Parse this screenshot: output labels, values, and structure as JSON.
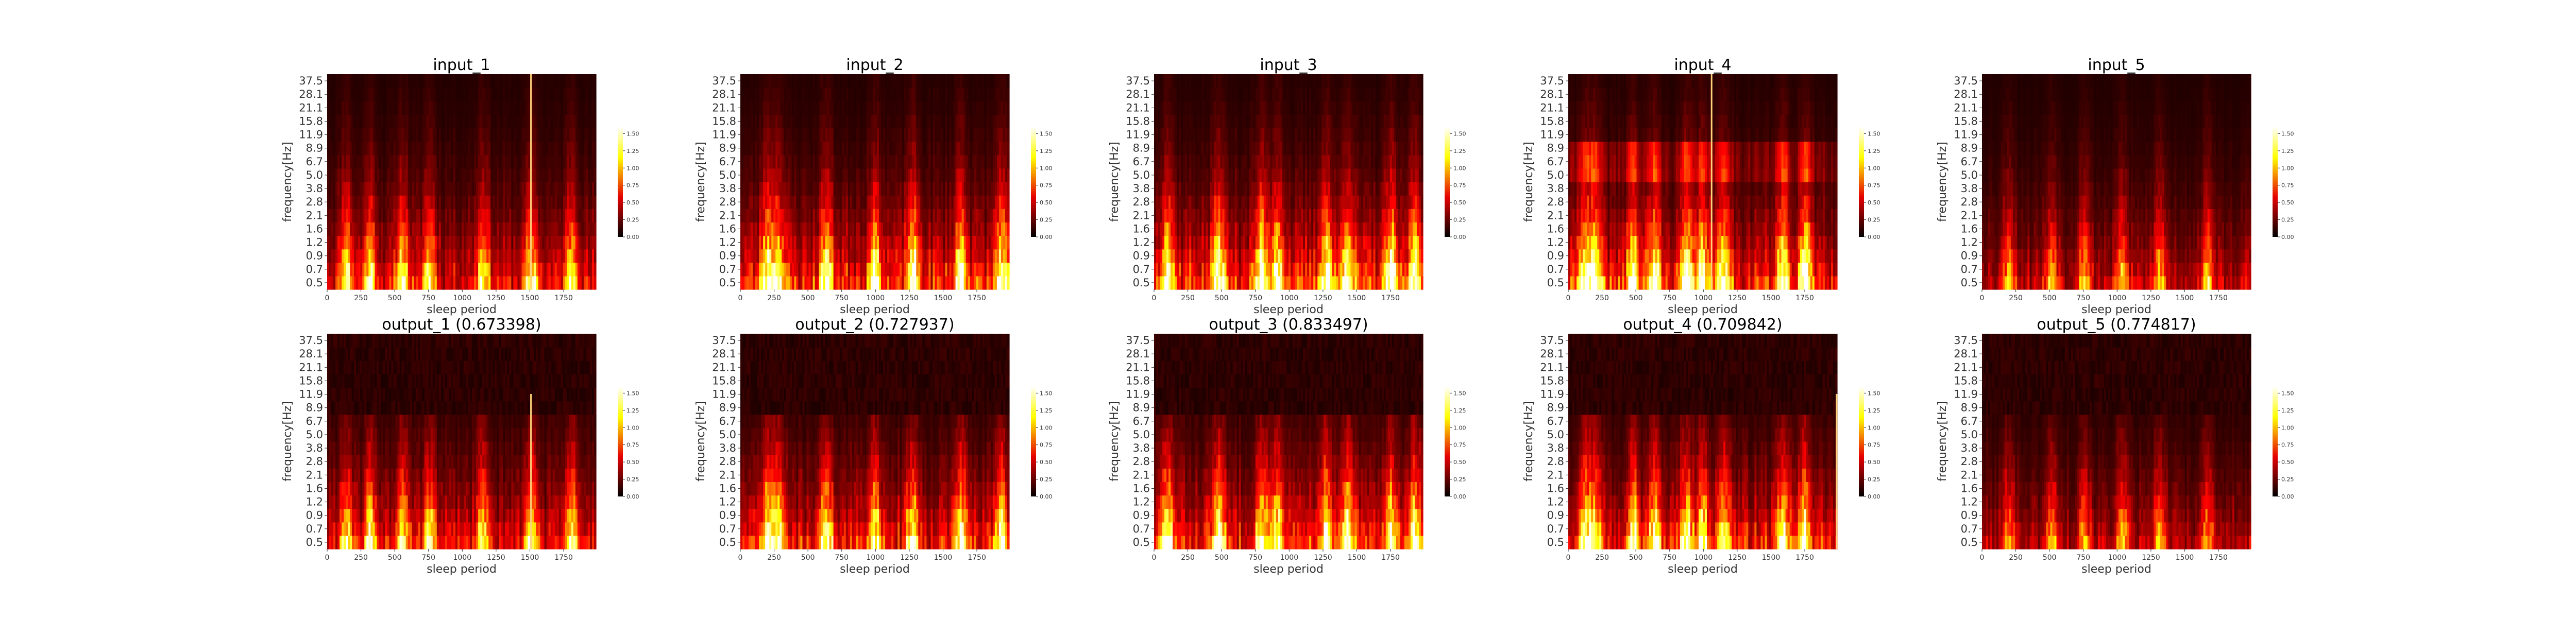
{
  "figure": {
    "colormap": "hot",
    "background": "#ffffff"
  },
  "chart_data": [
    {
      "type": "heatmap",
      "title": "input_1",
      "xlabel": "sleep period",
      "ylabel": "frequency[Hz]",
      "xticks": [
        0,
        250,
        500,
        750,
        1000,
        1250,
        1500,
        1750
      ],
      "xlim": [
        0,
        1990
      ],
      "yticks": [
        "0.5",
        "0.7",
        "0.9",
        "1.2",
        "1.6",
        "2.1",
        "2.8",
        "3.8",
        "5.0",
        "6.7",
        "8.9",
        "11.9",
        "15.8",
        "21.1",
        "28.1",
        "37.5"
      ],
      "colorbar": {
        "ticks": [
          "0.00",
          "0.25",
          "0.50",
          "0.75",
          "1.00",
          "1.25",
          "1.50"
        ],
        "min": 0,
        "max": 1.6
      },
      "seed": 11,
      "bright_x": [
        0.07,
        0.16,
        0.28,
        0.38,
        0.58,
        0.76,
        0.91
      ],
      "streak_x": 0.755,
      "intensity": 0.78,
      "cutoff": 1.0,
      "hi_band": 0.0
    },
    {
      "type": "heatmap",
      "title": "input_2",
      "xlabel": "sleep period",
      "ylabel": "frequency[Hz]",
      "xticks": [
        0,
        250,
        500,
        750,
        1000,
        1250,
        1500,
        1750
      ],
      "xlim": [
        0,
        1990
      ],
      "yticks": [
        "0.5",
        "0.7",
        "0.9",
        "1.2",
        "1.6",
        "2.1",
        "2.8",
        "3.8",
        "5.0",
        "6.7",
        "8.9",
        "11.9",
        "15.8",
        "21.1",
        "28.1",
        "37.5"
      ],
      "colorbar": {
        "ticks": [
          "0.00",
          "0.25",
          "0.50",
          "0.75",
          "1.00",
          "1.25",
          "1.50"
        ],
        "min": 0,
        "max": 1.6
      },
      "seed": 23,
      "bright_x": [
        0.1,
        0.14,
        0.32,
        0.5,
        0.64,
        0.82,
        0.97
      ],
      "streak_x": -1,
      "intensity": 0.95,
      "cutoff": 1.0,
      "hi_band": 0.0
    },
    {
      "type": "heatmap",
      "title": "input_3",
      "xlabel": "sleep period",
      "ylabel": "frequency[Hz]",
      "xticks": [
        0,
        250,
        500,
        750,
        1000,
        1250,
        1500,
        1750
      ],
      "xlim": [
        0,
        1990
      ],
      "yticks": [
        "0.5",
        "0.7",
        "0.9",
        "1.2",
        "1.6",
        "2.1",
        "2.8",
        "3.8",
        "5.0",
        "6.7",
        "8.9",
        "11.9",
        "15.8",
        "21.1",
        "28.1",
        "37.5"
      ],
      "colorbar": {
        "ticks": [
          "0.00",
          "0.25",
          "0.50",
          "0.75",
          "1.00",
          "1.25",
          "1.50"
        ],
        "min": 0,
        "max": 1.6
      },
      "seed": 37,
      "bright_x": [
        0.05,
        0.24,
        0.4,
        0.46,
        0.64,
        0.72,
        0.88,
        0.97
      ],
      "streak_x": -1,
      "intensity": 1.0,
      "cutoff": 1.0,
      "hi_band": 0.0
    },
    {
      "type": "heatmap",
      "title": "input_4",
      "xlabel": "sleep period",
      "ylabel": "frequency[Hz]",
      "xticks": [
        0,
        250,
        500,
        750,
        1000,
        1250,
        1500,
        1750
      ],
      "xlim": [
        0,
        1990
      ],
      "yticks": [
        "0.5",
        "0.7",
        "0.9",
        "1.2",
        "1.6",
        "2.1",
        "2.8",
        "3.8",
        "5.0",
        "6.7",
        "8.9",
        "11.9",
        "15.8",
        "21.1",
        "28.1",
        "37.5"
      ],
      "colorbar": {
        "ticks": [
          "0.00",
          "0.25",
          "0.50",
          "0.75",
          "1.00",
          "1.25",
          "1.50"
        ],
        "min": 0,
        "max": 1.6
      },
      "seed": 41,
      "bright_x": [
        0.06,
        0.1,
        0.24,
        0.32,
        0.44,
        0.5,
        0.58,
        0.8,
        0.88
      ],
      "streak_x": 0.53,
      "intensity": 0.95,
      "cutoff": 1.0,
      "hi_band": 0.35
    },
    {
      "type": "heatmap",
      "title": "input_5",
      "xlabel": "sleep period",
      "ylabel": "frequency[Hz]",
      "xticks": [
        0,
        250,
        500,
        750,
        1000,
        1250,
        1500,
        1750
      ],
      "xlim": [
        0,
        1990
      ],
      "yticks": [
        "0.5",
        "0.7",
        "0.9",
        "1.2",
        "1.6",
        "2.1",
        "2.8",
        "3.8",
        "5.0",
        "6.7",
        "8.9",
        "11.9",
        "15.8",
        "21.1",
        "28.1",
        "37.5"
      ],
      "colorbar": {
        "ticks": [
          "0.00",
          "0.25",
          "0.50",
          "0.75",
          "1.00",
          "1.25",
          "1.50"
        ],
        "min": 0,
        "max": 1.6
      },
      "seed": 53,
      "bright_x": [
        0.1,
        0.26,
        0.38,
        0.52,
        0.66,
        0.84
      ],
      "streak_x": -1,
      "intensity": 0.6,
      "cutoff": 1.0,
      "hi_band": 0.0
    },
    {
      "type": "heatmap",
      "title": "output_1 (0.673398)",
      "xlabel": "sleep period",
      "ylabel": "frequency[Hz]",
      "xticks": [
        0,
        250,
        500,
        750,
        1000,
        1250,
        1500,
        1750
      ],
      "xlim": [
        0,
        1990
      ],
      "yticks": [
        "0.5",
        "0.7",
        "0.9",
        "1.2",
        "1.6",
        "2.1",
        "2.8",
        "3.8",
        "5.0",
        "6.7",
        "8.9",
        "11.9",
        "15.8",
        "21.1",
        "28.1",
        "37.5"
      ],
      "colorbar": {
        "ticks": [
          "0.00",
          "0.25",
          "0.50",
          "0.75",
          "1.00",
          "1.25",
          "1.50"
        ],
        "min": 0,
        "max": 1.6
      },
      "seed": 61,
      "bright_x": [
        0.07,
        0.16,
        0.28,
        0.38,
        0.58,
        0.76,
        0.91
      ],
      "streak_x": 0.755,
      "intensity": 0.75,
      "cutoff": 0.66,
      "hi_band": 0.0
    },
    {
      "type": "heatmap",
      "title": "output_2 (0.727937)",
      "xlabel": "sleep period",
      "ylabel": "frequency[Hz]",
      "xticks": [
        0,
        250,
        500,
        750,
        1000,
        1250,
        1500,
        1750
      ],
      "xlim": [
        0,
        1990
      ],
      "yticks": [
        "0.5",
        "0.7",
        "0.9",
        "1.2",
        "1.6",
        "2.1",
        "2.8",
        "3.8",
        "5.0",
        "6.7",
        "8.9",
        "11.9",
        "15.8",
        "21.1",
        "28.1",
        "37.5"
      ],
      "colorbar": {
        "ticks": [
          "0.00",
          "0.25",
          "0.50",
          "0.75",
          "1.00",
          "1.25",
          "1.50"
        ],
        "min": 0,
        "max": 1.6
      },
      "seed": 71,
      "bright_x": [
        0.1,
        0.14,
        0.32,
        0.5,
        0.64,
        0.82,
        0.97
      ],
      "streak_x": -1,
      "intensity": 0.85,
      "cutoff": 0.66,
      "hi_band": 0.0
    },
    {
      "type": "heatmap",
      "title": "output_3 (0.833497)",
      "xlabel": "sleep period",
      "ylabel": "frequency[Hz]",
      "xticks": [
        0,
        250,
        500,
        750,
        1000,
        1250,
        1500,
        1750
      ],
      "xlim": [
        0,
        1990
      ],
      "yticks": [
        "0.5",
        "0.7",
        "0.9",
        "1.2",
        "1.6",
        "2.1",
        "2.8",
        "3.8",
        "5.0",
        "6.7",
        "8.9",
        "11.9",
        "15.8",
        "21.1",
        "28.1",
        "37.5"
      ],
      "colorbar": {
        "ticks": [
          "0.00",
          "0.25",
          "0.50",
          "0.75",
          "1.00",
          "1.25",
          "1.50"
        ],
        "min": 0,
        "max": 1.6
      },
      "seed": 83,
      "bright_x": [
        0.05,
        0.24,
        0.4,
        0.46,
        0.64,
        0.72,
        0.88,
        0.97
      ],
      "streak_x": -1,
      "intensity": 0.9,
      "cutoff": 0.66,
      "hi_band": 0.0
    },
    {
      "type": "heatmap",
      "title": "output_4 (0.709842)",
      "xlabel": "sleep period",
      "ylabel": "frequency[Hz]",
      "xticks": [
        0,
        250,
        500,
        750,
        1000,
        1250,
        1500,
        1750
      ],
      "xlim": [
        0,
        1990
      ],
      "yticks": [
        "0.5",
        "0.7",
        "0.9",
        "1.2",
        "1.6",
        "2.1",
        "2.8",
        "3.8",
        "5.0",
        "6.7",
        "8.9",
        "11.9",
        "15.8",
        "21.1",
        "28.1",
        "37.5"
      ],
      "colorbar": {
        "ticks": [
          "0.00",
          "0.25",
          "0.50",
          "0.75",
          "1.00",
          "1.25",
          "1.50"
        ],
        "min": 0,
        "max": 1.6
      },
      "seed": 97,
      "bright_x": [
        0.06,
        0.1,
        0.24,
        0.32,
        0.44,
        0.5,
        0.58,
        0.8,
        0.88
      ],
      "streak_x": 0.995,
      "intensity": 0.85,
      "cutoff": 0.66,
      "hi_band": 0.0
    },
    {
      "type": "heatmap",
      "title": "output_5 (0.774817)",
      "xlabel": "sleep period",
      "ylabel": "frequency[Hz]",
      "xticks": [
        0,
        250,
        500,
        750,
        1000,
        1250,
        1500,
        1750
      ],
      "xlim": [
        0,
        1990
      ],
      "yticks": [
        "0.5",
        "0.7",
        "0.9",
        "1.2",
        "1.6",
        "2.1",
        "2.8",
        "3.8",
        "5.0",
        "6.7",
        "8.9",
        "11.9",
        "15.8",
        "21.1",
        "28.1",
        "37.5"
      ],
      "colorbar": {
        "ticks": [
          "0.00",
          "0.25",
          "0.50",
          "0.75",
          "1.00",
          "1.25",
          "1.50"
        ],
        "min": 0,
        "max": 1.6
      },
      "seed": 101,
      "bright_x": [
        0.1,
        0.26,
        0.38,
        0.52,
        0.66,
        0.84
      ],
      "streak_x": -1,
      "intensity": 0.55,
      "cutoff": 0.66,
      "hi_band": 0.0
    }
  ]
}
